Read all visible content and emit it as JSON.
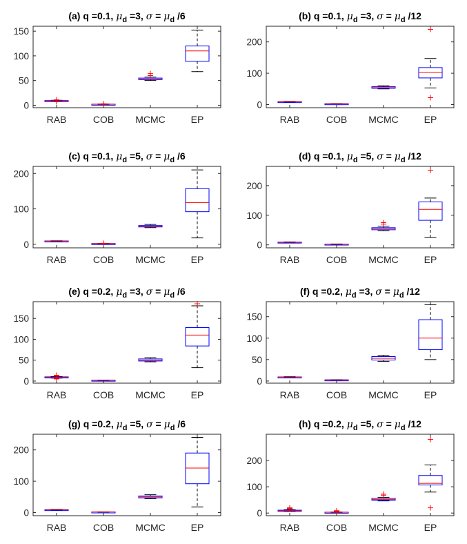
{
  "layout": {
    "rows": 4,
    "cols": 2
  },
  "colors": {
    "box": "#0000ff",
    "median": "#ff0000",
    "outlier": "#ff0000",
    "whisker": "#000000",
    "axis": "#262626"
  },
  "chart_data": [
    {
      "type": "box",
      "title_parts": [
        "(a) q =0.1, ",
        "μ",
        "d",
        " =3, ",
        "σ",
        " = ",
        "μ",
        "d",
        " /6"
      ],
      "categories": [
        "RAB",
        "COB",
        "MCMC",
        "EP"
      ],
      "ylim": [
        -5,
        160
      ],
      "yticks": [
        0,
        50,
        100,
        150
      ],
      "boxes": [
        {
          "min": 8,
          "q1": 8.5,
          "median": 9,
          "q3": 9.5,
          "max": 10,
          "outliers": [
            11,
            7
          ]
        },
        {
          "min": 1.5,
          "q1": 1.8,
          "median": 2,
          "q3": 2.2,
          "max": 2.5,
          "outliers": [
            3
          ]
        },
        {
          "min": 50,
          "q1": 52,
          "median": 53,
          "q3": 55,
          "max": 57,
          "outliers": [
            60,
            64
          ]
        },
        {
          "min": 68,
          "q1": 89,
          "median": 110,
          "q3": 120,
          "max": 152,
          "outliers": []
        }
      ]
    },
    {
      "type": "box",
      "title_parts": [
        "(b) q =0.1, ",
        "μ",
        "d",
        " =3, ",
        "σ",
        " = ",
        "μ",
        "d",
        " /12"
      ],
      "categories": [
        "RAB",
        "COB",
        "MCMC",
        "EP"
      ],
      "ylim": [
        -10,
        250
      ],
      "yticks": [
        0,
        100,
        200
      ],
      "boxes": [
        {
          "min": 8,
          "q1": 8.5,
          "median": 9,
          "q3": 9.5,
          "max": 10,
          "outliers": []
        },
        {
          "min": 2,
          "q1": 2.3,
          "median": 2.5,
          "q3": 2.8,
          "max": 3,
          "outliers": []
        },
        {
          "min": 50,
          "q1": 52,
          "median": 54,
          "q3": 57,
          "max": 60,
          "outliers": []
        },
        {
          "min": 53,
          "q1": 85,
          "median": 103,
          "q3": 118,
          "max": 147,
          "outliers": [
            240,
            22
          ]
        }
      ]
    },
    {
      "type": "box",
      "title_parts": [
        "(c) q =0.1, ",
        "μ",
        "d",
        " =5, ",
        "σ",
        " = ",
        "μ",
        "d",
        " /6"
      ],
      "categories": [
        "RAB",
        "COB",
        "MCMC",
        "EP"
      ],
      "ylim": [
        -10,
        220
      ],
      "yticks": [
        0,
        100,
        200
      ],
      "boxes": [
        {
          "min": 8,
          "q1": 8.5,
          "median": 9,
          "q3": 9.5,
          "max": 10,
          "outliers": []
        },
        {
          "min": 1.5,
          "q1": 1.8,
          "median": 2,
          "q3": 2.2,
          "max": 2.5,
          "outliers": [
            3
          ]
        },
        {
          "min": 47,
          "q1": 49,
          "median": 51,
          "q3": 53,
          "max": 56,
          "outliers": []
        },
        {
          "min": 18,
          "q1": 92,
          "median": 118,
          "q3": 157,
          "max": 210,
          "outliers": []
        }
      ]
    },
    {
      "type": "box",
      "title_parts": [
        "(d) q =0.1, ",
        "μ",
        "d",
        " =5, ",
        "σ",
        " = ",
        "μ",
        "d",
        " /12"
      ],
      "categories": [
        "RAB",
        "COB",
        "MCMC",
        "EP"
      ],
      "ylim": [
        -10,
        265
      ],
      "yticks": [
        0,
        100,
        200
      ],
      "boxes": [
        {
          "min": 8,
          "q1": 8.5,
          "median": 9,
          "q3": 9.5,
          "max": 10,
          "outliers": []
        },
        {
          "min": 2,
          "q1": 2.3,
          "median": 2.5,
          "q3": 2.8,
          "max": 3,
          "outliers": []
        },
        {
          "min": 48,
          "q1": 51,
          "median": 54,
          "q3": 58,
          "max": 63,
          "outliers": [
            70,
            75
          ]
        },
        {
          "min": 25,
          "q1": 83,
          "median": 120,
          "q3": 145,
          "max": 158,
          "outliers": [
            252
          ]
        }
      ]
    },
    {
      "type": "box",
      "title_parts": [
        "(e) q =0.2, ",
        "μ",
        "d",
        " =3, ",
        "σ",
        " = ",
        "μ",
        "d",
        " /6"
      ],
      "categories": [
        "RAB",
        "COB",
        "MCMC",
        "EP"
      ],
      "ylim": [
        -5,
        190
      ],
      "yticks": [
        0,
        50,
        100,
        150
      ],
      "boxes": [
        {
          "min": 7,
          "q1": 8,
          "median": 9,
          "q3": 10,
          "max": 11,
          "outliers": [
            12,
            14,
            6,
            5
          ]
        },
        {
          "min": 1.5,
          "q1": 1.8,
          "median": 2,
          "q3": 2.2,
          "max": 2.5,
          "outliers": []
        },
        {
          "min": 46,
          "q1": 48,
          "median": 50,
          "q3": 53,
          "max": 56,
          "outliers": []
        },
        {
          "min": 32,
          "q1": 84,
          "median": 110,
          "q3": 128,
          "max": 180,
          "outliers": [
            185
          ]
        }
      ]
    },
    {
      "type": "box",
      "title_parts": [
        "(f) q =0.2, ",
        "μ",
        "d",
        " =3, ",
        "σ",
        " = ",
        "μ",
        "d",
        " /12"
      ],
      "categories": [
        "RAB",
        "COB",
        "MCMC",
        "EP"
      ],
      "ylim": [
        -5,
        185
      ],
      "yticks": [
        0,
        50,
        100,
        150
      ],
      "boxes": [
        {
          "min": 8,
          "q1": 8.5,
          "median": 9,
          "q3": 9.5,
          "max": 10,
          "outliers": []
        },
        {
          "min": 2,
          "q1": 2.3,
          "median": 2.5,
          "q3": 2.8,
          "max": 3,
          "outliers": []
        },
        {
          "min": 46,
          "q1": 49,
          "median": 53,
          "q3": 57,
          "max": 60,
          "outliers": []
        },
        {
          "min": 50,
          "q1": 73,
          "median": 100,
          "q3": 143,
          "max": 178,
          "outliers": []
        }
      ]
    },
    {
      "type": "box",
      "title_parts": [
        "(g) q =0.2, ",
        "μ",
        "d",
        " =5, ",
        "σ",
        " = ",
        "μ",
        "d",
        " /6"
      ],
      "categories": [
        "RAB",
        "COB",
        "MCMC",
        "EP"
      ],
      "ylim": [
        -10,
        250
      ],
      "yticks": [
        0,
        100,
        200
      ],
      "boxes": [
        {
          "min": 8,
          "q1": 8.5,
          "median": 9,
          "q3": 9.5,
          "max": 10,
          "outliers": []
        },
        {
          "min": 1.5,
          "q1": 1.8,
          "median": 2,
          "q3": 2.2,
          "max": 2.5,
          "outliers": []
        },
        {
          "min": 44,
          "q1": 47,
          "median": 50,
          "q3": 53,
          "max": 57,
          "outliers": []
        },
        {
          "min": 18,
          "q1": 92,
          "median": 142,
          "q3": 190,
          "max": 240,
          "outliers": []
        }
      ]
    },
    {
      "type": "box",
      "title_parts": [
        "(h) q =0.2, ",
        "μ",
        "d",
        " =5, ",
        "σ",
        " = ",
        "μ",
        "d",
        " /12"
      ],
      "categories": [
        "RAB",
        "COB",
        "MCMC",
        "EP"
      ],
      "ylim": [
        -10,
        300
      ],
      "yticks": [
        0,
        100,
        200
      ],
      "boxes": [
        {
          "min": 6,
          "q1": 8,
          "median": 9,
          "q3": 11,
          "max": 13,
          "outliers": [
            16,
            18,
            20
          ]
        },
        {
          "min": 2,
          "q1": 2.5,
          "median": 3,
          "q3": 3.5,
          "max": 4,
          "outliers": [
            7,
            9
          ]
        },
        {
          "min": 46,
          "q1": 49,
          "median": 52,
          "q3": 56,
          "max": 60,
          "outliers": [
            68,
            72
          ]
        },
        {
          "min": 80,
          "q1": 107,
          "median": 113,
          "q3": 143,
          "max": 183,
          "outliers": [
            280,
            20
          ]
        }
      ]
    }
  ]
}
